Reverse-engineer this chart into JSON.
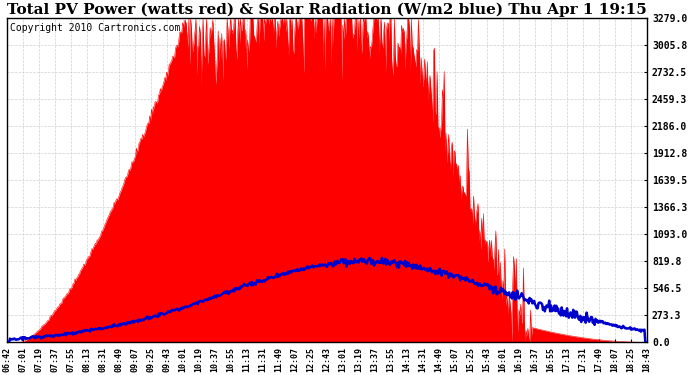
{
  "title": "Total PV Power (watts red) & Solar Radiation (W/m2 blue) Thu Apr 1 19:15",
  "copyright": "Copyright 2010 Cartronics.com",
  "yticks": [
    0.0,
    273.3,
    546.5,
    819.8,
    1093.0,
    1366.3,
    1639.5,
    1912.8,
    2186.0,
    2459.3,
    2732.5,
    3005.8,
    3279.0
  ],
  "ymax": 3279.0,
  "xtick_labels": [
    "06:42",
    "07:01",
    "07:19",
    "07:37",
    "07:55",
    "08:13",
    "08:31",
    "08:49",
    "09:07",
    "09:25",
    "09:43",
    "10:01",
    "10:19",
    "10:37",
    "10:55",
    "11:13",
    "11:31",
    "11:49",
    "12:07",
    "12:25",
    "12:43",
    "13:01",
    "13:19",
    "13:37",
    "13:55",
    "14:13",
    "14:31",
    "14:49",
    "15:07",
    "15:25",
    "15:43",
    "16:01",
    "16:19",
    "16:37",
    "16:55",
    "17:13",
    "17:31",
    "17:49",
    "18:07",
    "18:25",
    "18:43"
  ],
  "background_color": "#ffffff",
  "grid_color": "#aaaaaa",
  "pv_color": "#ff0000",
  "solar_color": "#0000cc",
  "title_fontsize": 11,
  "copyright_fontsize": 7
}
